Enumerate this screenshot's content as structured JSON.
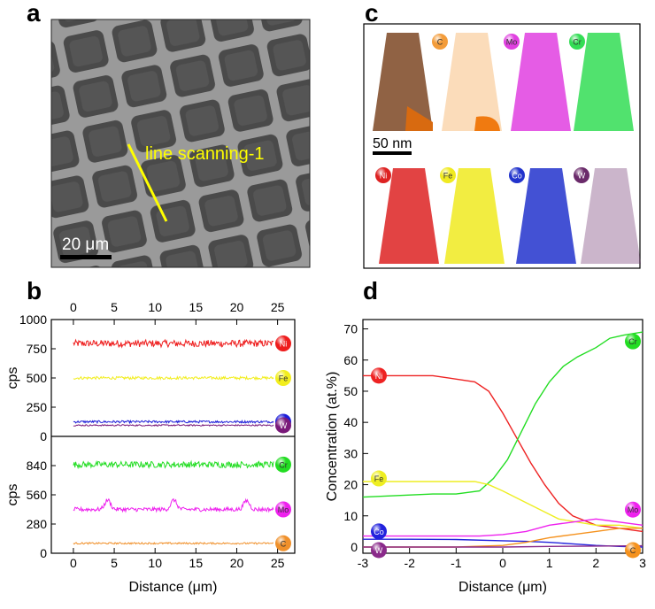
{
  "panels": {
    "a": {
      "label": "a",
      "annotation": "line scanning-1",
      "scalebar": "20 μm"
    },
    "c": {
      "label": "c",
      "scalebar": "50 nm",
      "elements": [
        "C",
        "Mo",
        "Cr",
        "Ni",
        "Fe",
        "Co",
        "W"
      ],
      "colors": {
        "C": "#f39c3a",
        "Mo": "#e040e0",
        "Cr": "#33dd55",
        "Ni": "#dd2222",
        "Fe": "#f0ea20",
        "Co": "#2233cc",
        "W": "#6a2a6a"
      }
    }
  },
  "chart_data": [
    {
      "panel": "b",
      "type": "line",
      "label": "b",
      "xlabel": "Distance (μm)",
      "x_range": [
        0,
        24.5
      ],
      "xlim": [
        -2.7,
        27.1
      ],
      "xticks": [
        0,
        5,
        10,
        15,
        20,
        25
      ],
      "subplots": [
        {
          "ylabel": "cps",
          "ylim": [
            0,
            1000
          ],
          "yticks": [
            0,
            250,
            500,
            750,
            1000
          ],
          "series": [
            {
              "name": "Ni",
              "color": "#ee1c1c",
              "mean": 795,
              "noise": 30,
              "bumps": []
            },
            {
              "name": "Fe",
              "color": "#f2ee1e",
              "mean": 500,
              "noise": 12,
              "bumps": []
            },
            {
              "name": "Co",
              "color": "#1c1cd8",
              "mean": 125,
              "noise": 10,
              "bumps": []
            },
            {
              "name": "W",
              "color": "#7a1a7a",
              "mean": 95,
              "noise": 6,
              "bumps": []
            }
          ]
        },
        {
          "ylabel": "cps",
          "ylim": [
            0,
            1120
          ],
          "yticks": [
            0,
            280,
            560,
            840
          ],
          "series": [
            {
              "name": "Cr",
              "color": "#22dd22",
              "mean": 850,
              "noise": 30,
              "bumps": []
            },
            {
              "name": "Mo",
              "color": "#ee22ee",
              "mean": 420,
              "noise": 20,
              "bumps": [
                [
                  4.2,
                  90
                ],
                [
                  12.3,
                  90
                ],
                [
                  21.2,
                  85
                ]
              ]
            },
            {
              "name": "C",
              "color": "#f0902a",
              "mean": 95,
              "noise": 8,
              "bumps": []
            }
          ]
        }
      ]
    },
    {
      "panel": "d",
      "type": "line",
      "label": "d",
      "xlabel": "Distance (μm)",
      "ylabel": "Concentration (at.%)",
      "xlim": [
        -3,
        3
      ],
      "ylim": [
        -2,
        73
      ],
      "xticks": [
        -3,
        -2,
        -1,
        0,
        1,
        2,
        3
      ],
      "yticks": [
        0,
        10,
        20,
        30,
        40,
        50,
        60,
        70
      ],
      "series": [
        {
          "name": "Ni",
          "color": "#ee2222",
          "x": [
            -3,
            -1.5,
            -0.6,
            -0.3,
            0,
            0.3,
            0.6,
            0.9,
            1.2,
            1.5,
            2,
            2.5,
            3
          ],
          "y": [
            55,
            55,
            53,
            50,
            43,
            35,
            27,
            20,
            14,
            10,
            7,
            6,
            5
          ]
        },
        {
          "name": "Cr",
          "color": "#22dd22",
          "x": [
            -3,
            -1.5,
            -1,
            -0.5,
            -0.2,
            0.1,
            0.4,
            0.7,
            1,
            1.3,
            1.6,
            2,
            2.3,
            2.6,
            3
          ],
          "y": [
            16,
            17,
            17,
            18,
            22,
            28,
            37,
            46,
            53,
            58,
            61,
            64,
            67,
            68,
            69
          ]
        },
        {
          "name": "Fe",
          "color": "#eeee22",
          "x": [
            -3,
            -2,
            -1,
            -0.6,
            -0.3,
            0,
            0.4,
            0.8,
            1.2,
            1.6,
            2,
            2.5,
            3
          ],
          "y": [
            21,
            21,
            21,
            21,
            20,
            18,
            15,
            12,
            9,
            8,
            7,
            7,
            6
          ]
        },
        {
          "name": "Mo",
          "color": "#ee22ee",
          "x": [
            -3,
            -1.5,
            -0.5,
            0,
            0.5,
            1,
            1.5,
            2,
            2.5,
            3
          ],
          "y": [
            3.5,
            3.5,
            3.5,
            4,
            5,
            7,
            8,
            9,
            8,
            7
          ]
        },
        {
          "name": "Co",
          "color": "#2222dd",
          "x": [
            -3,
            -2,
            -1,
            0,
            0.5,
            1,
            1.5,
            2,
            2.5,
            3
          ],
          "y": [
            2.5,
            2.5,
            2.4,
            2,
            1.8,
            1.5,
            1,
            0.5,
            0.2,
            0
          ]
        },
        {
          "name": "C",
          "color": "#f5921e",
          "x": [
            -3,
            -1,
            0,
            0.5,
            1,
            1.5,
            2,
            2.5,
            3
          ],
          "y": [
            0,
            0,
            0.5,
            1.5,
            3,
            4,
            5,
            6,
            6
          ]
        },
        {
          "name": "W",
          "color": "#8a2a8a",
          "x": [
            -3,
            -1,
            0,
            1,
            2,
            3
          ],
          "y": [
            0,
            0,
            0,
            0.2,
            0.3,
            0.4
          ]
        }
      ]
    }
  ]
}
